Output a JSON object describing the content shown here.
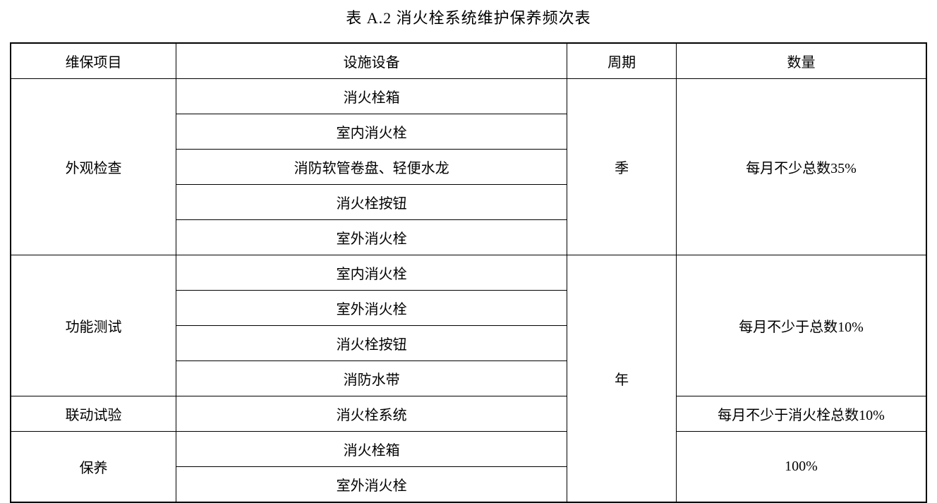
{
  "title": "表 A.2 消火栓系统维护保养频次表",
  "headers": {
    "project": "维保项目",
    "equipment": "设施设备",
    "period": "周期",
    "quantity": "数量"
  },
  "groups": [
    {
      "project": "外观检查",
      "period": "季",
      "quantity": "每月不少总数35%",
      "equipment": [
        "消火栓箱",
        "室内消火栓",
        "消防软管卷盘、轻便水龙",
        "消火栓按钮",
        "室外消火栓"
      ]
    },
    {
      "project": "功能测试",
      "period": "年",
      "quantity": "每月不少于总数10%",
      "equipment": [
        "室内消火栓",
        "室外消火栓",
        "消火栓按钮",
        "消防水带"
      ]
    },
    {
      "project": "联动试验",
      "quantity": "每月不少于消火栓总数10%",
      "equipment": [
        "消火栓系统"
      ]
    },
    {
      "project": "保养",
      "quantity": "100%",
      "equipment": [
        "消火栓箱",
        "室外消火栓"
      ]
    }
  ]
}
